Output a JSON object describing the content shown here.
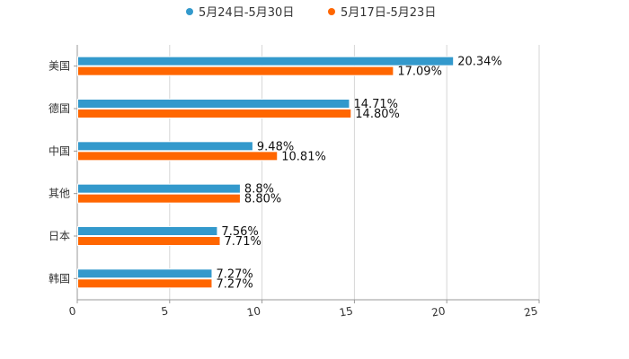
{
  "chart_data": {
    "type": "bar",
    "orientation": "horizontal",
    "categories": [
      "美国",
      "德国",
      "中国",
      "其他",
      "日本",
      "韩国"
    ],
    "series": [
      {
        "name": "5月24日-5月30日",
        "color": "#3399cc",
        "values": [
          20.34,
          14.71,
          9.48,
          8.8,
          7.56,
          7.27
        ],
        "labels": [
          "20.34%",
          "14.71%",
          "9.48%",
          "8.8%",
          "7.56%",
          "7.27%"
        ]
      },
      {
        "name": "5月17日-5月23日",
        "color": "#ff6600",
        "values": [
          17.09,
          14.8,
          10.81,
          8.8,
          7.71,
          7.27
        ],
        "labels": [
          "17.09%",
          "14.80%",
          "10.81%",
          "8.80%",
          "7.71%",
          "7.27%"
        ]
      }
    ],
    "xlim": [
      0,
      25
    ],
    "xticks": [
      "0",
      "5",
      "10",
      "15",
      "20",
      "25"
    ],
    "grid": true,
    "legend_position": "top-center",
    "title": "",
    "xlabel": "",
    "ylabel": ""
  }
}
